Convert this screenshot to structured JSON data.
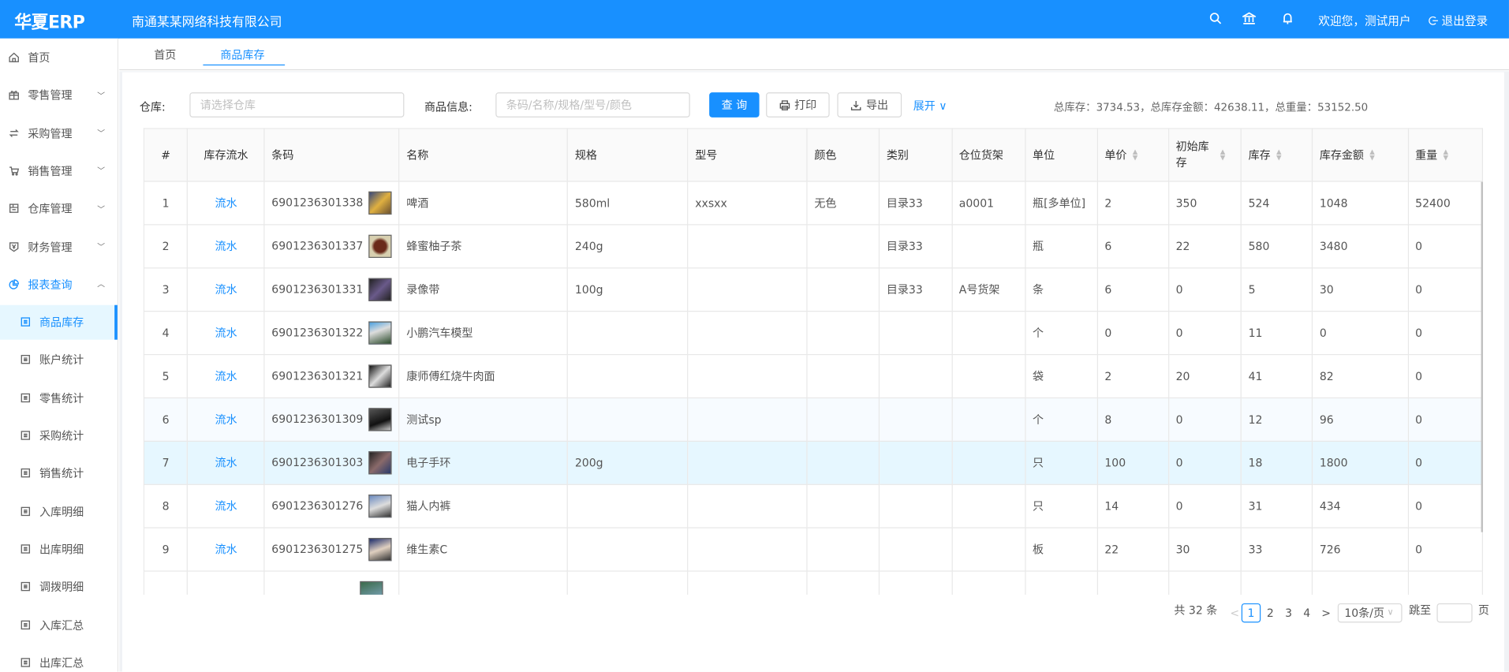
{
  "header": {
    "logo": "华夏ERP",
    "company": "南通某某网络科技有限公司",
    "welcome": "欢迎您，测试用户",
    "logout": "退出登录",
    "brand_color": "#1890ff",
    "icons": [
      "search-icon",
      "bank-icon",
      "bell-icon"
    ]
  },
  "sidebar": {
    "items": [
      {
        "label": "首页",
        "icon": "home-icon"
      },
      {
        "label": "零售管理",
        "icon": "gift-icon",
        "chevron": "down"
      },
      {
        "label": "采购管理",
        "icon": "swap-icon",
        "chevron": "down"
      },
      {
        "label": "销售管理",
        "icon": "cart-icon",
        "chevron": "down"
      },
      {
        "label": "仓库管理",
        "icon": "warehouse-icon",
        "chevron": "down"
      },
      {
        "label": "财务管理",
        "icon": "finance-icon",
        "chevron": "down"
      },
      {
        "label": "报表查询",
        "icon": "pie-chart-icon",
        "chevron": "up",
        "active": true
      }
    ],
    "sub_items": [
      "商品库存",
      "账户统计",
      "零售统计",
      "采购统计",
      "销售统计",
      "入库明细",
      "出库明细",
      "调拨明细",
      "入库汇总",
      "出库汇总"
    ],
    "selected": "商品库存"
  },
  "tabs": [
    {
      "label": "首页"
    },
    {
      "label": "商品库存",
      "active": true
    }
  ],
  "filters": {
    "warehouse_label": "仓库:",
    "warehouse_placeholder": "请选择仓库",
    "goods_label": "商品信息:",
    "goods_placeholder": "条码/名称/规格/型号/颜色",
    "query": "查 询",
    "print": "打印",
    "export": "导出",
    "expand": "展开"
  },
  "totals": "总库存：3734.53，总库存金额：42638.11，总重量：53152.50",
  "table": {
    "columns": [
      "#",
      "库存流水",
      "条码",
      "名称",
      "规格",
      "型号",
      "颜色",
      "类别",
      "仓位货架",
      "单位",
      "单价",
      "初始库存",
      "库存",
      "库存金额",
      "重量"
    ],
    "link_text": "流水",
    "rows": [
      [
        "1",
        "6901236301338",
        "啤酒",
        "580ml",
        "xxsxx",
        "无色",
        "目录33",
        "a0001",
        "瓶[多单位]",
        "2",
        "350",
        "524",
        "1048",
        "52400"
      ],
      [
        "2",
        "6901236301337",
        "蜂蜜柚子茶",
        "240g",
        "",
        "",
        "目录33",
        "",
        "瓶",
        "6",
        "22",
        "580",
        "3480",
        "0"
      ],
      [
        "3",
        "6901236301331",
        "录像带",
        "100g",
        "",
        "",
        "目录33",
        "A号货架",
        "条",
        "6",
        "0",
        "5",
        "30",
        "0"
      ],
      [
        "4",
        "6901236301322",
        "小鹏汽车模型",
        "",
        "",
        "",
        "",
        "",
        "个",
        "0",
        "0",
        "11",
        "0",
        "0"
      ],
      [
        "5",
        "6901236301321",
        "康师傅红烧牛肉面",
        "",
        "",
        "",
        "",
        "",
        "袋",
        "2",
        "20",
        "41",
        "82",
        "0"
      ],
      [
        "6",
        "6901236301309",
        "测试sp",
        "",
        "",
        "",
        "",
        "",
        "个",
        "8",
        "0",
        "12",
        "96",
        "0"
      ],
      [
        "7",
        "6901236301303",
        "电子手环",
        "200g",
        "",
        "",
        "",
        "",
        "只",
        "100",
        "0",
        "18",
        "1800",
        "0"
      ],
      [
        "8",
        "6901236301276",
        "猫人内裤",
        "",
        "",
        "",
        "",
        "",
        "只",
        "14",
        "0",
        "31",
        "434",
        "0"
      ],
      [
        "9",
        "6901236301275",
        "维生素C",
        "",
        "",
        "",
        "",
        "",
        "板",
        "22",
        "30",
        "33",
        "726",
        "0"
      ]
    ]
  },
  "pagination": {
    "total": "共 32 条",
    "pages": [
      "1",
      "2",
      "3",
      "4"
    ],
    "current": "1",
    "page_size": "10条/页",
    "jump_label": "跳至",
    "page_suffix": "页"
  }
}
